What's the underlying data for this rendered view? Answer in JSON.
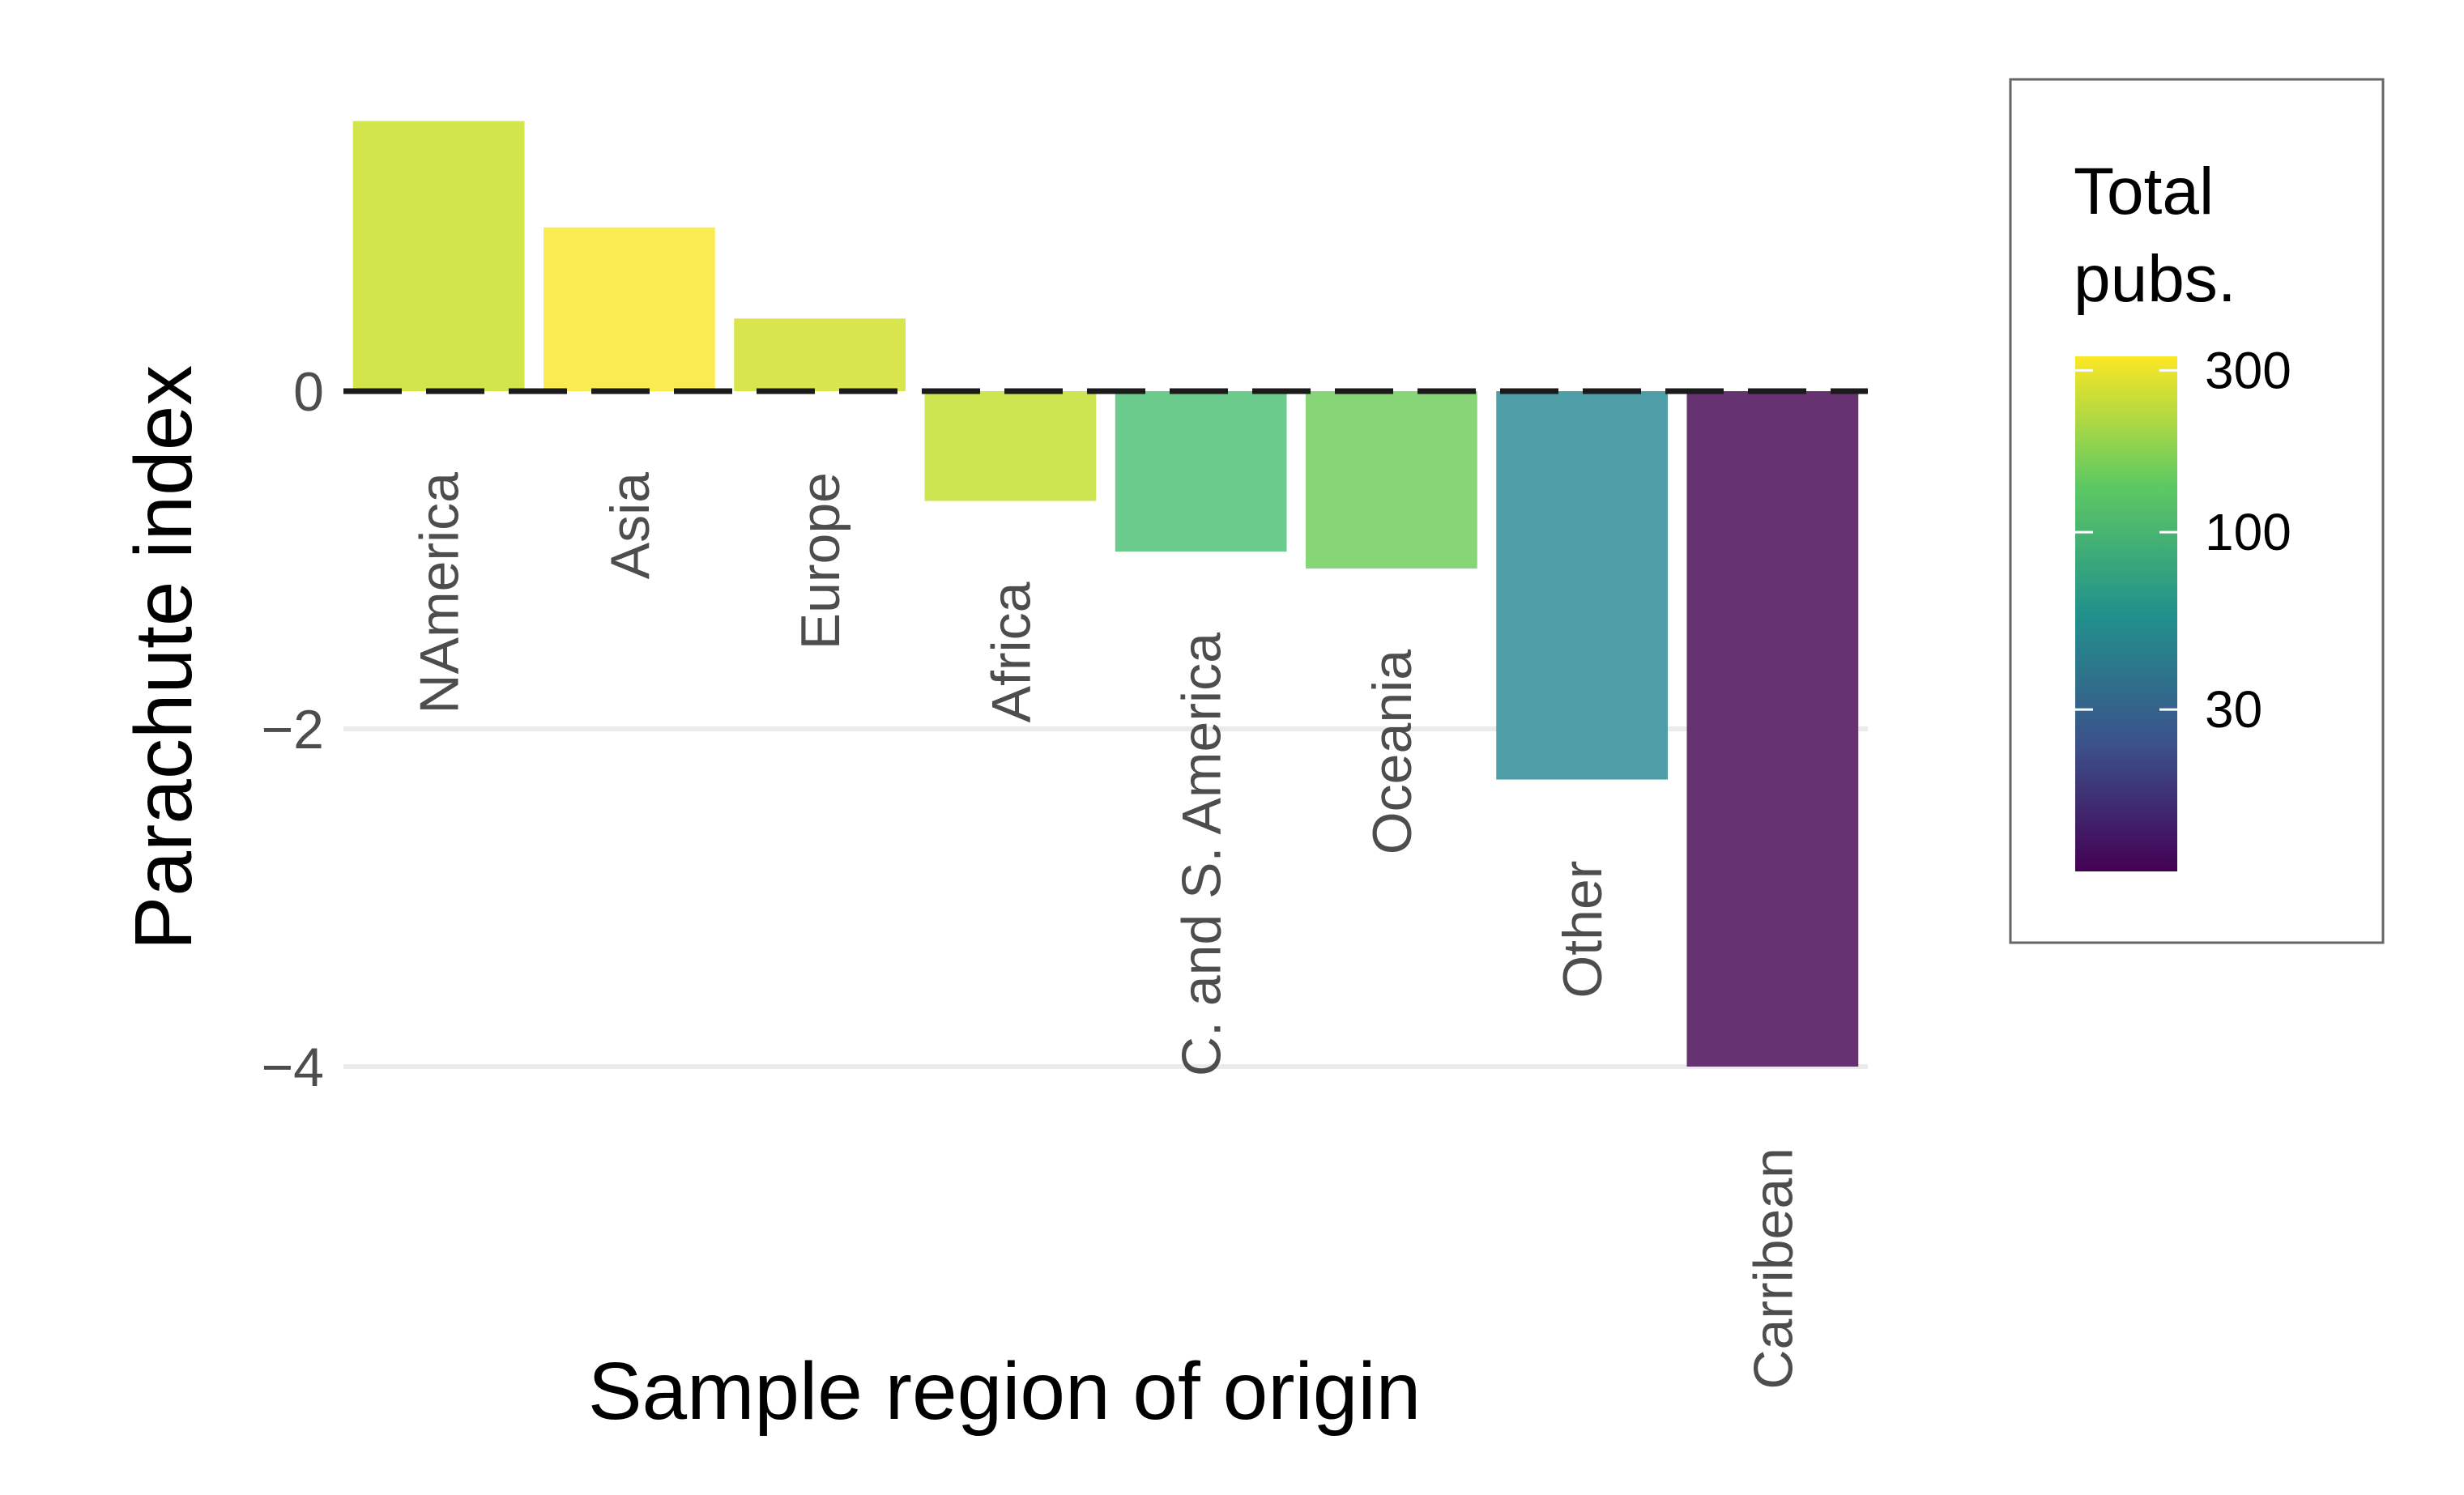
{
  "chart_data": {
    "type": "bar",
    "categories": [
      "NAmerica",
      "Asia",
      "Europe",
      "Africa",
      "C. and S. America",
      "Oceania",
      "Other",
      "Carribean"
    ],
    "values": [
      1.6,
      0.97,
      0.43,
      -0.65,
      -0.95,
      -1.05,
      -2.3,
      -4.0
    ],
    "total_pubs": [
      250,
      320,
      250,
      240,
      120,
      170,
      45,
      10
    ],
    "colors": [
      "#d2e54b",
      "#fbeb52",
      "#d9e54c",
      "#cde551",
      "#6acb8c",
      "#86d677",
      "#4d9ea7",
      "#663271"
    ],
    "xlabel": "Sample region of origin",
    "ylabel": "Parachute index",
    "ylim": [
      -4.0,
      1.6
    ],
    "yticks": [
      0,
      -2,
      -4
    ],
    "ytick_labels": [
      "0",
      "−2",
      "−4"
    ],
    "reference_line": 0,
    "grid": true,
    "legend": {
      "title_line1": "Total",
      "title_line2": "pubs.",
      "ticks": [
        300,
        100,
        30
      ],
      "tick_labels": [
        "300",
        "100",
        "30"
      ],
      "scale": "log",
      "range": [
        10,
        330
      ],
      "placement": "right",
      "gradient": [
        "#440154",
        "#3b528b",
        "#21918c",
        "#5ec962",
        "#fde725"
      ]
    }
  }
}
